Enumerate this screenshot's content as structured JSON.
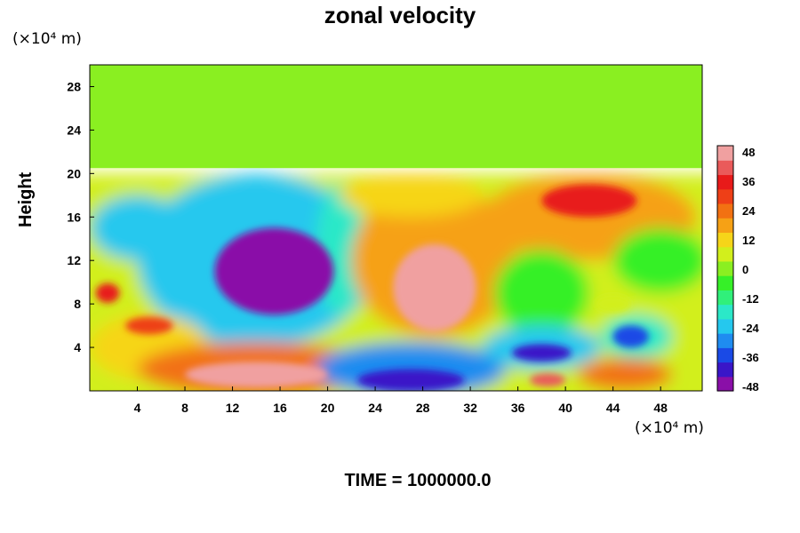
{
  "chart_data": {
    "type": "heatmap",
    "title": "zonal velocity",
    "ylabel": "Height",
    "y_unit": "(×10⁴ m)",
    "x_unit": "(×10⁴ m)",
    "xlim": [
      0,
      51.5
    ],
    "ylim": [
      0,
      30
    ],
    "x_ticks": [
      4,
      8,
      12,
      16,
      20,
      24,
      28,
      32,
      36,
      40,
      44,
      48
    ],
    "y_ticks": [
      4,
      8,
      12,
      16,
      20,
      24,
      28
    ],
    "colorbar": {
      "min": -48,
      "max": 48,
      "ticks": [
        48,
        36,
        24,
        12,
        0,
        -12,
        -24,
        -36,
        -48
      ],
      "colors": [
        "#8a0fa8",
        "#3a16c8",
        "#1a4ae6",
        "#1f8cf0",
        "#25c8ee",
        "#2be8c8",
        "#30f07a",
        "#36f028",
        "#8aef21",
        "#d2ef1c",
        "#f6d519",
        "#f6a115",
        "#f27112",
        "#ee3f17",
        "#e81a1a",
        "#ea5a5a",
        "#f0a0a0"
      ]
    },
    "features": [
      {
        "x": 15.5,
        "y": 11.0,
        "value": -48
      },
      {
        "x": 29.0,
        "y": 9.5,
        "value": 45
      },
      {
        "x": 14.0,
        "y": 1.5,
        "value": 48
      },
      {
        "x": 42.0,
        "y": 17.5,
        "value": 34
      },
      {
        "x": 27.0,
        "y": 1.0,
        "value": -44
      },
      {
        "x": 38.0,
        "y": 3.5,
        "value": -42
      },
      {
        "x": 45.5,
        "y": 5.0,
        "value": -38
      },
      {
        "x": 5.0,
        "y": 6.0,
        "value": 30
      },
      {
        "x": 1.5,
        "y": 9.0,
        "value": 36
      },
      {
        "x": 44.0,
        "y": 8.0,
        "value": 8
      },
      {
        "x": 38.5,
        "y": 1.0,
        "value": 40
      }
    ],
    "upper_region_value": -3
  },
  "footer": {
    "time_label": "TIME = 1000000.0"
  }
}
